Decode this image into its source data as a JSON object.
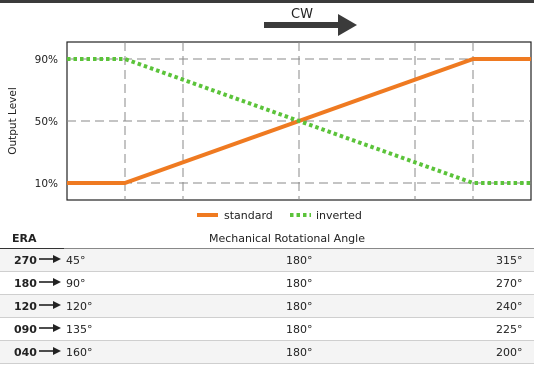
{
  "direction": {
    "label": "CW"
  },
  "colors": {
    "standard": "#ef7a21",
    "inverted": "#5bc33a",
    "grid": "#8a8a8a",
    "axis": "#222222",
    "topbar": "#3b3b3b"
  },
  "chart_data": {
    "type": "line",
    "ylabel": "Output Level",
    "xlabel": "",
    "yticks": [
      "10%",
      "50%",
      "90%"
    ],
    "ylim": [
      10,
      90
    ],
    "xlim": [
      0,
      360
    ],
    "vertical_gridlines_deg": [
      45,
      90,
      180,
      270,
      315
    ],
    "grid": true,
    "legend_position": "bottom-center",
    "series": [
      {
        "name": "standard",
        "style": "solid",
        "x": [
          0,
          45,
          315,
          360
        ],
        "y": [
          10,
          10,
          90,
          90
        ]
      },
      {
        "name": "inverted",
        "style": "dotted",
        "x": [
          0,
          45,
          315,
          360
        ],
        "y": [
          90,
          90,
          10,
          10
        ]
      }
    ]
  },
  "table": {
    "era_header": "ERA",
    "angle_header": "Mechanical Rotational Angle",
    "rows": [
      {
        "era": "270",
        "start": "45°",
        "mid": "180°",
        "end": "315°"
      },
      {
        "era": "180",
        "start": "90°",
        "mid": "180°",
        "end": "270°"
      },
      {
        "era": "120",
        "start": "120°",
        "mid": "180°",
        "end": "240°"
      },
      {
        "era": "090",
        "start": "135°",
        "mid": "180°",
        "end": "225°"
      },
      {
        "era": "040",
        "start": "160°",
        "mid": "180°",
        "end": "200°"
      }
    ]
  }
}
